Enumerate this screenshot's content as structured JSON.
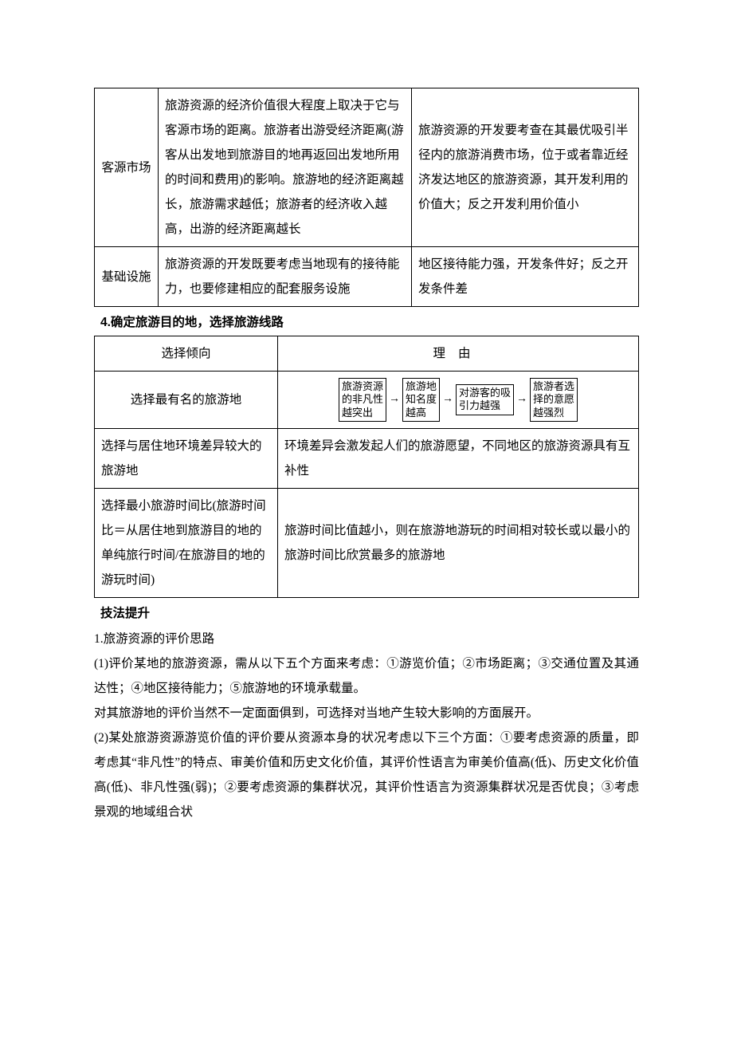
{
  "table1": {
    "rows": [
      {
        "c1": "客源市场",
        "c2": "旅游资源的经济价值很大程度上取决于它与客源市场的距离。旅游者出游受经济距离(游客从出发地到旅游目的地再返回出发地所用的时间和费用)的影响。旅游地的经济距离越长，旅游需求越低；旅游者的经济收入越高，出游的经济距离越长",
        "c3": "旅游资源的开发要考查在其最优吸引半径内的旅游消费市场，位于或者靠近经济发达地区的旅游资源，其开发利用的价值大；反之开发利用价值小"
      },
      {
        "c1": "基础设施",
        "c2": "旅游资源的开发既要考虑当地现有的接待能力，也要修建相应的配套服务设施",
        "c3": "地区接待能力强，开发条件好；反之开发条件差"
      }
    ]
  },
  "mid_heading": "4.确定旅游目的地，选择旅游线路",
  "table2": {
    "header": {
      "c1": "选择倾向",
      "c2": "理由"
    },
    "rows": [
      {
        "c1": "选择最有名的旅游地",
        "flow": [
          "旅游资源\n的非凡性\n越突出",
          "旅游地\n知名度\n越高",
          "对游客的吸\n引力越强",
          "旅游者选\n择的意愿\n越强烈"
        ]
      },
      {
        "c1": "选择与居住地环境差异较大的旅游地",
        "c2": "环境差异会激发起人们的旅游愿望，不同地区的旅游资源具有互补性"
      },
      {
        "c1": "选择最小旅游时间比(旅游时间比＝从居住地到旅游目的地的单纯旅行时间/在旅游目的地的游玩时间)",
        "c2": "旅游时间比值越小，则在旅游地游玩的时间相对较长或以最小的旅游时间比欣赏最多的旅游地"
      }
    ]
  },
  "skill_heading": "技法提升",
  "sub_heading": "1.旅游资源的评价思路",
  "paragraphs": [
    "(1)评价某地的旅游资源，需从以下五个方面来考虑：①游览价值；②市场距离；③交通位置及其通达性；④地区接待能力；⑤旅游地的环境承载量。",
    "对其旅游地的评价当然不一定面面俱到，可选择对当地产生较大影响的方面展开。",
    "(2)某处旅游资源游览价值的评价要从资源本身的状况考虑以下三个方面：①要考虑资源的质量，即考虑其“非凡性”的特点、审美价值和历史文化价值，其评价性语言为审美价值高(低)、历史文化价值高(低)、非凡性强(弱)；②要考虑资源的集群状况，其评价性语言为资源集群状况是否优良；③考虑景观的地域组合状"
  ],
  "arrow": "→"
}
